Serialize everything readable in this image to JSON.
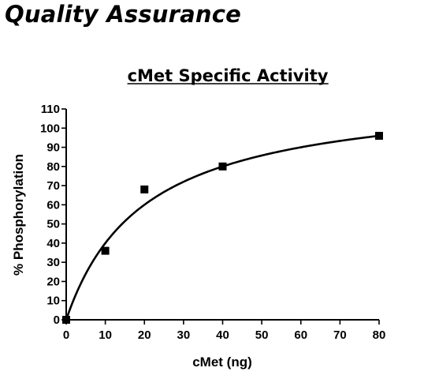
{
  "page": {
    "heading": "Quality Assurance"
  },
  "chart_data": {
    "type": "scatter",
    "title": "cMet Specific Activity",
    "xlabel": "cMet (ng)",
    "ylabel": "% Phosphorylation",
    "xlim": [
      0,
      80
    ],
    "ylim": [
      0,
      110
    ],
    "xticks": [
      0,
      10,
      20,
      30,
      40,
      50,
      60,
      70,
      80
    ],
    "yticks": [
      0,
      10,
      20,
      30,
      40,
      50,
      60,
      70,
      80,
      90,
      100,
      110
    ],
    "grid": false,
    "series": [
      {
        "marker": "square",
        "color": "#000000",
        "points": [
          {
            "x": 0,
            "y": 0
          },
          {
            "x": 10,
            "y": 36
          },
          {
            "x": 20,
            "y": 68
          },
          {
            "x": 40,
            "y": 80
          },
          {
            "x": 80,
            "y": 96
          }
        ]
      }
    ],
    "fit": {
      "model": "hyperbola",
      "bmax": 120,
      "kd": 20,
      "color": "#000000"
    }
  }
}
